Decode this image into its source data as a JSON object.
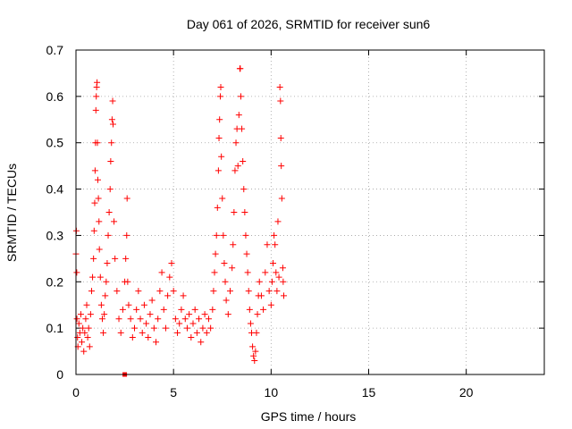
{
  "chart_data": {
    "type": "scatter",
    "title": "Day 061 of 2026, SRMTID for receiver sun6",
    "xlabel": "GPS time / hours",
    "ylabel": "SRMTID / TECUs",
    "xlim": [
      0,
      24
    ],
    "ylim": [
      0,
      0.7
    ],
    "xticks": [
      0,
      5,
      10,
      15,
      20
    ],
    "yticks": [
      0,
      0.1,
      0.2,
      0.3,
      0.4,
      0.5,
      0.6,
      0.7
    ],
    "xtick_labels": [
      "0",
      "5",
      "10",
      "15",
      "20"
    ],
    "ytick_labels": [
      "0",
      "0.1",
      "0.2",
      "0.3",
      "0.4",
      "0.5",
      "0.6",
      "0.7"
    ],
    "grid": true,
    "marker": "plus",
    "color": "#ff0000",
    "series": [
      {
        "name": "sun6",
        "points": [
          [
            0.0,
            0.26
          ],
          [
            0.02,
            0.31
          ],
          [
            0.04,
            0.22
          ],
          [
            0.05,
            0.12
          ],
          [
            0.08,
            0.08
          ],
          [
            0.1,
            0.06
          ],
          [
            0.15,
            0.11
          ],
          [
            0.2,
            0.09
          ],
          [
            0.25,
            0.13
          ],
          [
            0.3,
            0.07
          ],
          [
            0.35,
            0.1
          ],
          [
            0.4,
            0.05
          ],
          [
            0.45,
            0.09
          ],
          [
            0.5,
            0.12
          ],
          [
            0.55,
            0.15
          ],
          [
            0.6,
            0.08
          ],
          [
            0.65,
            0.1
          ],
          [
            0.7,
            0.06
          ],
          [
            0.75,
            0.13
          ],
          [
            0.8,
            0.18
          ],
          [
            0.85,
            0.21
          ],
          [
            0.9,
            0.25
          ],
          [
            0.93,
            0.31
          ],
          [
            0.96,
            0.37
          ],
          [
            0.98,
            0.44
          ],
          [
            1.0,
            0.5
          ],
          [
            1.02,
            0.57
          ],
          [
            1.04,
            0.6
          ],
          [
            1.06,
            0.62
          ],
          [
            1.08,
            0.63
          ],
          [
            1.1,
            0.5
          ],
          [
            1.12,
            0.42
          ],
          [
            1.15,
            0.38
          ],
          [
            1.18,
            0.33
          ],
          [
            1.2,
            0.27
          ],
          [
            1.25,
            0.21
          ],
          [
            1.3,
            0.15
          ],
          [
            1.35,
            0.12
          ],
          [
            1.4,
            0.09
          ],
          [
            1.45,
            0.13
          ],
          [
            1.5,
            0.17
          ],
          [
            1.55,
            0.2
          ],
          [
            1.6,
            0.24
          ],
          [
            1.65,
            0.3
          ],
          [
            1.7,
            0.35
          ],
          [
            1.75,
            0.4
          ],
          [
            1.78,
            0.46
          ],
          [
            1.82,
            0.5
          ],
          [
            1.85,
            0.55
          ],
          [
            1.88,
            0.59
          ],
          [
            1.9,
            0.54
          ],
          [
            1.95,
            0.33
          ],
          [
            2.0,
            0.25
          ],
          [
            2.1,
            0.18
          ],
          [
            2.2,
            0.12
          ],
          [
            2.3,
            0.09
          ],
          [
            2.4,
            0.14
          ],
          [
            2.5,
            0.2
          ],
          [
            2.55,
            0.25
          ],
          [
            2.6,
            0.3
          ],
          [
            2.62,
            0.38
          ],
          [
            2.65,
            0.2
          ],
          [
            2.7,
            0.15
          ],
          [
            2.8,
            0.12
          ],
          [
            2.9,
            0.08
          ],
          [
            3.0,
            0.1
          ],
          [
            3.1,
            0.14
          ],
          [
            3.2,
            0.18
          ],
          [
            3.3,
            0.12
          ],
          [
            3.4,
            0.09
          ],
          [
            3.5,
            0.15
          ],
          [
            3.6,
            0.11
          ],
          [
            3.7,
            0.08
          ],
          [
            3.8,
            0.13
          ],
          [
            3.9,
            0.16
          ],
          [
            4.0,
            0.1
          ],
          [
            4.1,
            0.07
          ],
          [
            4.2,
            0.12
          ],
          [
            4.3,
            0.18
          ],
          [
            4.4,
            0.22
          ],
          [
            4.5,
            0.14
          ],
          [
            4.6,
            0.1
          ],
          [
            4.7,
            0.17
          ],
          [
            4.8,
            0.21
          ],
          [
            4.9,
            0.24
          ],
          [
            5.0,
            0.18
          ],
          [
            5.1,
            0.12
          ],
          [
            5.2,
            0.09
          ],
          [
            5.3,
            0.11
          ],
          [
            5.4,
            0.14
          ],
          [
            5.5,
            0.17
          ],
          [
            5.6,
            0.12
          ],
          [
            5.7,
            0.1
          ],
          [
            5.8,
            0.13
          ],
          [
            5.9,
            0.08
          ],
          [
            6.0,
            0.11
          ],
          [
            6.1,
            0.14
          ],
          [
            6.2,
            0.09
          ],
          [
            6.3,
            0.12
          ],
          [
            6.4,
            0.07
          ],
          [
            6.5,
            0.1
          ],
          [
            6.6,
            0.13
          ],
          [
            6.7,
            0.09
          ],
          [
            6.8,
            0.12
          ],
          [
            6.9,
            0.1
          ],
          [
            7.0,
            0.14
          ],
          [
            7.05,
            0.18
          ],
          [
            7.1,
            0.22
          ],
          [
            7.15,
            0.26
          ],
          [
            7.2,
            0.3
          ],
          [
            7.25,
            0.36
          ],
          [
            7.3,
            0.44
          ],
          [
            7.33,
            0.51
          ],
          [
            7.36,
            0.55
          ],
          [
            7.4,
            0.6
          ],
          [
            7.42,
            0.62
          ],
          [
            7.45,
            0.47
          ],
          [
            7.5,
            0.38
          ],
          [
            7.55,
            0.3
          ],
          [
            7.6,
            0.24
          ],
          [
            7.65,
            0.2
          ],
          [
            7.7,
            0.16
          ],
          [
            7.8,
            0.13
          ],
          [
            7.9,
            0.18
          ],
          [
            8.0,
            0.23
          ],
          [
            8.05,
            0.28
          ],
          [
            8.1,
            0.35
          ],
          [
            8.15,
            0.44
          ],
          [
            8.2,
            0.5
          ],
          [
            8.25,
            0.53
          ],
          [
            8.3,
            0.45
          ],
          [
            8.35,
            0.56
          ],
          [
            8.4,
            0.66
          ],
          [
            8.42,
            0.66
          ],
          [
            8.45,
            0.6
          ],
          [
            8.5,
            0.53
          ],
          [
            8.55,
            0.46
          ],
          [
            8.6,
            0.4
          ],
          [
            8.65,
            0.35
          ],
          [
            8.7,
            0.3
          ],
          [
            8.75,
            0.26
          ],
          [
            8.8,
            0.22
          ],
          [
            8.85,
            0.18
          ],
          [
            8.9,
            0.14
          ],
          [
            8.95,
            0.11
          ],
          [
            9.0,
            0.09
          ],
          [
            9.05,
            0.06
          ],
          [
            9.1,
            0.04
          ],
          [
            9.15,
            0.03
          ],
          [
            9.2,
            0.05
          ],
          [
            9.25,
            0.09
          ],
          [
            9.3,
            0.13
          ],
          [
            9.35,
            0.17
          ],
          [
            9.4,
            0.2
          ],
          [
            9.5,
            0.17
          ],
          [
            9.6,
            0.14
          ],
          [
            9.7,
            0.22
          ],
          [
            9.8,
            0.28
          ],
          [
            9.9,
            0.18
          ],
          [
            10.0,
            0.15
          ],
          [
            10.05,
            0.2
          ],
          [
            10.1,
            0.24
          ],
          [
            10.15,
            0.3
          ],
          [
            10.2,
            0.28
          ],
          [
            10.25,
            0.22
          ],
          [
            10.3,
            0.18
          ],
          [
            10.35,
            0.33
          ],
          [
            10.4,
            0.21
          ],
          [
            10.45,
            0.62
          ],
          [
            10.48,
            0.59
          ],
          [
            10.5,
            0.51
          ],
          [
            10.52,
            0.45
          ],
          [
            10.55,
            0.38
          ],
          [
            10.6,
            0.23
          ],
          [
            10.62,
            0.2
          ],
          [
            10.65,
            0.17
          ]
        ]
      }
    ],
    "annotations": [
      {
        "text": "small square marker",
        "x": 2.5,
        "y": 0.0
      }
    ]
  }
}
